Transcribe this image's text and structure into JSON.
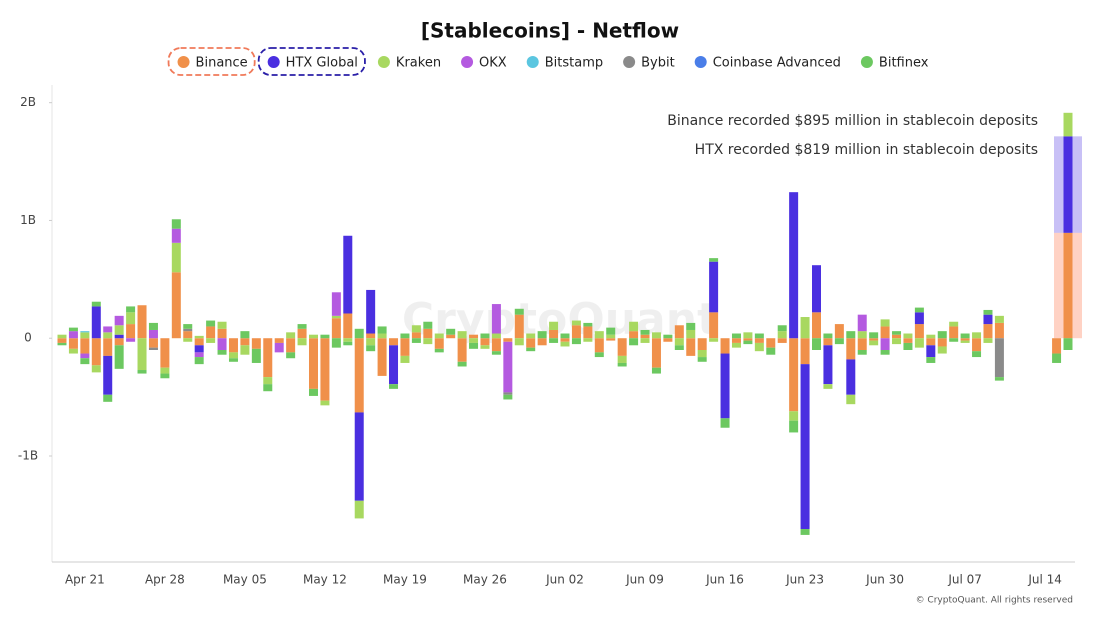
{
  "chart_data": {
    "type": "bar",
    "stacked": true,
    "title": "[Stablecoins] - Netflow",
    "annotations": [
      "Binance recorded $895 million in stablecoin deposits",
      "HTX recorded $819 million in stablecoin deposits"
    ],
    "annotation_colors": [
      "#f07a5a",
      "#2a1fa8"
    ],
    "watermark": "CryptoQuant",
    "credit": "© CryptoQuant. All rights reserved",
    "grid": false,
    "ylim": [
      -1900,
      2150
    ],
    "yticks": [
      {
        "value": -1000,
        "label": "-1B"
      },
      0,
      {
        "value": 1000,
        "label": "1B"
      },
      {
        "value": 2000,
        "label": "2B"
      }
    ],
    "categories": [
      null,
      null,
      "Apr 21",
      null,
      null,
      null,
      null,
      null,
      null,
      "Apr 28",
      null,
      null,
      null,
      null,
      null,
      null,
      "May 05",
      null,
      null,
      null,
      null,
      null,
      null,
      "May 12",
      null,
      null,
      null,
      null,
      null,
      null,
      "May 19",
      null,
      null,
      null,
      null,
      null,
      null,
      "May 26",
      null,
      null,
      null,
      null,
      null,
      null,
      "Jun 02",
      null,
      null,
      null,
      null,
      null,
      null,
      "Jun 09",
      null,
      null,
      null,
      null,
      null,
      null,
      "Jun 16",
      null,
      null,
      null,
      null,
      null,
      null,
      "Jun 23",
      null,
      null,
      null,
      null,
      null,
      null,
      "Jun 30",
      null,
      null,
      null,
      null,
      null,
      null,
      "Jul 07",
      null,
      null,
      null,
      null,
      null,
      null,
      "Jul 14",
      null,
      null
    ],
    "series": [
      {
        "name": "Binance",
        "color": "#f0904a",
        "values": [
          -40,
          -90,
          -130,
          -230,
          -150,
          -60,
          120,
          280,
          -80,
          -250,
          560,
          60,
          -60,
          100,
          80,
          -120,
          -60,
          -90,
          -330,
          -40,
          -120,
          80,
          -430,
          -530,
          170,
          210,
          -630,
          40,
          -320,
          -60,
          -150,
          50,
          80,
          -90,
          30,
          -200,
          30,
          -60,
          -110,
          -30,
          200,
          -80,
          -60,
          70,
          -30,
          110,
          100,
          -120,
          -20,
          -150,
          60,
          30,
          -250,
          -30,
          110,
          -150,
          -100,
          220,
          -130,
          -40,
          -20,
          -40,
          -80,
          -40,
          -620,
          -220,
          220,
          -60,
          120,
          -180,
          -100,
          -20,
          100,
          30,
          -40,
          120,
          -60,
          -70,
          100,
          -20,
          -110,
          120,
          130,
          null,
          null,
          null,
          null,
          -130,
          895
        ]
      },
      {
        "name": "HTX Global",
        "color": "#4a2fe0",
        "values": [
          0,
          0,
          0,
          270,
          -330,
          30,
          0,
          0,
          0,
          0,
          0,
          0,
          -60,
          0,
          0,
          0,
          0,
          0,
          0,
          0,
          0,
          0,
          0,
          0,
          0,
          660,
          -750,
          370,
          0,
          -330,
          0,
          0,
          0,
          0,
          0,
          0,
          0,
          0,
          0,
          0,
          0,
          0,
          0,
          0,
          0,
          0,
          0,
          0,
          0,
          0,
          0,
          0,
          0,
          0,
          0,
          0,
          0,
          430,
          -550,
          0,
          0,
          0,
          0,
          0,
          1240,
          -1400,
          400,
          -330,
          0,
          -300,
          0,
          0,
          0,
          0,
          0,
          100,
          -100,
          0,
          0,
          0,
          0,
          80,
          0,
          null,
          null,
          null,
          null,
          0,
          819
        ]
      },
      {
        "name": "Kraken",
        "color": "#a8d860",
        "values": [
          30,
          -40,
          50,
          -60,
          50,
          80,
          100,
          -270,
          0,
          -50,
          250,
          -30,
          20,
          -40,
          60,
          -50,
          -80,
          0,
          -60,
          0,
          50,
          -60,
          30,
          -40,
          20,
          -30,
          -150,
          -60,
          40,
          0,
          -60,
          60,
          -50,
          40,
          0,
          60,
          -40,
          -30,
          40,
          0,
          -60,
          40,
          0,
          70,
          -40,
          40,
          -30,
          60,
          30,
          -60,
          80,
          -40,
          50,
          0,
          -60,
          70,
          -60,
          -30,
          0,
          -40,
          50,
          -70,
          0,
          60,
          -80,
          180,
          0,
          -40,
          0,
          -80,
          60,
          -40,
          60,
          -50,
          40,
          -80,
          30,
          -60,
          40,
          -20,
          50,
          -40,
          60,
          null,
          null,
          null,
          null,
          0,
          200
        ]
      },
      {
        "name": "OKX",
        "color": "#b45ae0",
        "values": [
          0,
          60,
          -40,
          0,
          50,
          80,
          -30,
          0,
          70,
          0,
          120,
          0,
          -40,
          0,
          -100,
          0,
          0,
          0,
          0,
          -80,
          0,
          0,
          0,
          0,
          200,
          0,
          0,
          0,
          0,
          0,
          0,
          0,
          0,
          0,
          0,
          0,
          0,
          0,
          250,
          -430,
          0,
          0,
          0,
          0,
          0,
          0,
          0,
          0,
          0,
          0,
          0,
          0,
          0,
          0,
          0,
          0,
          0,
          0,
          0,
          0,
          0,
          0,
          0,
          0,
          0,
          0,
          0,
          0,
          0,
          0,
          140,
          0,
          -100,
          0,
          0,
          0,
          0,
          0,
          0,
          0,
          0,
          0,
          0,
          null,
          null,
          null,
          null,
          0,
          0
        ]
      },
      {
        "name": "Bitstamp",
        "color": "#5bc6e0",
        "values": [
          0,
          0,
          10,
          0,
          0,
          0,
          0,
          0,
          0,
          0,
          0,
          0,
          0,
          0,
          0,
          0,
          0,
          0,
          0,
          0,
          0,
          0,
          0,
          0,
          0,
          0,
          0,
          0,
          0,
          0,
          0,
          0,
          0,
          0,
          0,
          0,
          0,
          0,
          0,
          0,
          0,
          0,
          0,
          0,
          0,
          0,
          0,
          0,
          0,
          0,
          0,
          0,
          0,
          0,
          0,
          0,
          0,
          0,
          0,
          0,
          0,
          0,
          0,
          0,
          0,
          0,
          0,
          0,
          0,
          0,
          0,
          0,
          0,
          0,
          0,
          0,
          0,
          0,
          0,
          0,
          0,
          0,
          0,
          null,
          null,
          null,
          null,
          0,
          0
        ]
      },
      {
        "name": "Bybit",
        "color": "#8a8a8a",
        "values": [
          0,
          0,
          0,
          0,
          0,
          0,
          0,
          0,
          -20,
          0,
          0,
          20,
          0,
          0,
          0,
          0,
          0,
          0,
          0,
          0,
          0,
          0,
          0,
          0,
          0,
          0,
          0,
          0,
          0,
          0,
          0,
          0,
          0,
          0,
          0,
          0,
          0,
          0,
          0,
          -20,
          0,
          0,
          0,
          0,
          0,
          0,
          0,
          0,
          0,
          0,
          0,
          0,
          0,
          0,
          0,
          0,
          0,
          0,
          0,
          0,
          0,
          0,
          0,
          0,
          0,
          0,
          0,
          0,
          0,
          0,
          0,
          0,
          0,
          0,
          0,
          0,
          0,
          0,
          0,
          0,
          0,
          0,
          -330,
          null,
          null,
          null,
          null,
          0,
          0
        ]
      },
      {
        "name": "Coinbase Advanced",
        "color": "#4a7ee8",
        "values": [
          0,
          0,
          0,
          0,
          0,
          0,
          0,
          0,
          0,
          0,
          0,
          0,
          0,
          0,
          0,
          0,
          0,
          0,
          0,
          0,
          0,
          0,
          0,
          0,
          0,
          0,
          0,
          0,
          0,
          0,
          0,
          0,
          0,
          0,
          0,
          0,
          0,
          0,
          0,
          0,
          0,
          0,
          0,
          0,
          0,
          0,
          0,
          0,
          0,
          0,
          0,
          0,
          0,
          0,
          0,
          0,
          0,
          0,
          0,
          0,
          0,
          0,
          0,
          0,
          0,
          0,
          0,
          0,
          0,
          0,
          0,
          0,
          0,
          0,
          0,
          0,
          0,
          0,
          0,
          0,
          0,
          0,
          0,
          null,
          null,
          null,
          null,
          0,
          0
        ]
      },
      {
        "name": "Bitfinex",
        "color": "#6cc860",
        "values": [
          -20,
          30,
          -50,
          40,
          -60,
          -200,
          50,
          -30,
          60,
          -40,
          80,
          40,
          -60,
          50,
          -40,
          -30,
          60,
          -120,
          -60,
          0,
          -50,
          40,
          -60,
          30,
          -80,
          -30,
          80,
          -50,
          60,
          -40,
          40,
          -40,
          60,
          -30,
          50,
          -40,
          -50,
          40,
          -30,
          -40,
          50,
          -30,
          60,
          -40,
          40,
          -50,
          30,
          -40,
          60,
          -30,
          -60,
          40,
          -50,
          30,
          -40,
          60,
          -40,
          30,
          -80,
          40,
          -30,
          40,
          -60,
          50,
          -100,
          -50,
          -100,
          40,
          -50,
          60,
          -40,
          50,
          -40,
          30,
          -60,
          40,
          -50,
          60,
          -30,
          40,
          -50,
          40,
          -30,
          null,
          null,
          null,
          null,
          -80,
          -100
        ]
      }
    ]
  }
}
